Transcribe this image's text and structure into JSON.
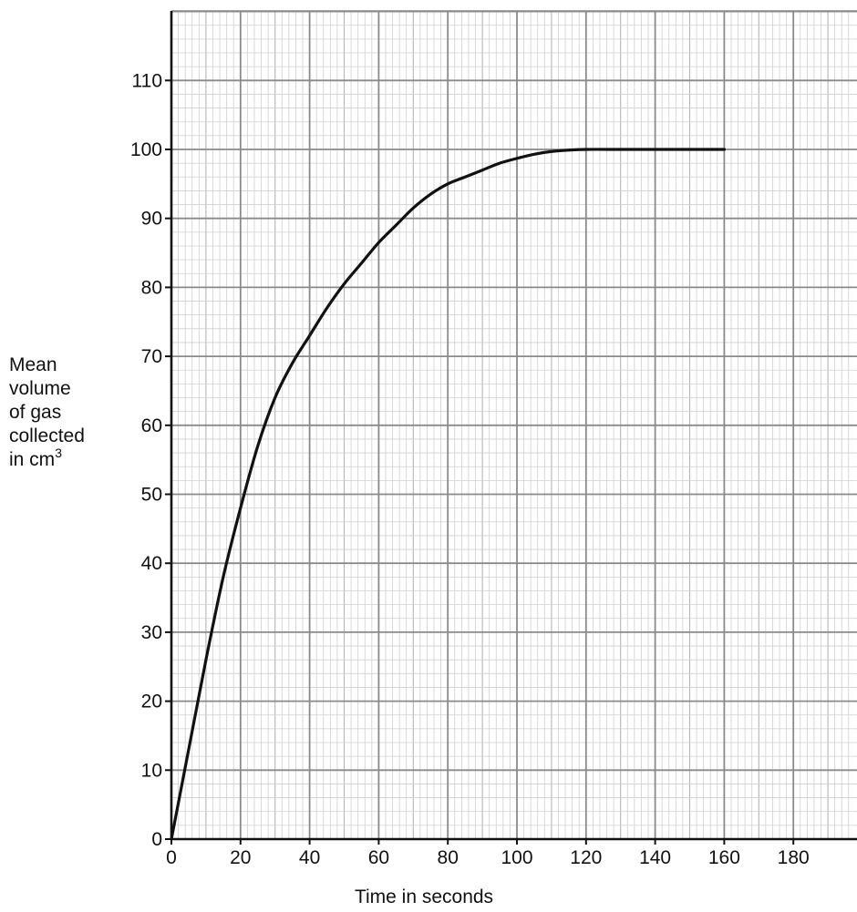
{
  "chart_data": {
    "type": "line",
    "title": "",
    "xlabel": "Time in seconds",
    "ylabel": {
      "line1": "Mean",
      "line2": "volume",
      "line3": "of gas",
      "line4": "collected",
      "line5_text": "in cm",
      "line5_sup": "3"
    },
    "xlim": [
      0,
      197
    ],
    "ylim": [
      0,
      110
    ],
    "x_ticks": [
      0,
      20,
      40,
      60,
      80,
      100,
      120,
      140,
      160,
      180
    ],
    "y_ticks": [
      0,
      10,
      20,
      30,
      40,
      50,
      60,
      70,
      80,
      90,
      100,
      110
    ],
    "grid": true,
    "minor_grid_step": {
      "x": 2,
      "y": 2
    },
    "series": [
      {
        "x": [
          0,
          5,
          10,
          15,
          20,
          25,
          30,
          35,
          40,
          45,
          50,
          55,
          60,
          65,
          70,
          75,
          80,
          85,
          90,
          95,
          100,
          105,
          110,
          115,
          120,
          130,
          140,
          150,
          160
        ],
        "y": [
          0,
          13,
          26,
          38,
          48,
          57,
          64,
          69,
          73,
          77,
          80.5,
          83.5,
          86.5,
          89,
          91.5,
          93.5,
          95,
          96,
          97,
          98,
          98.7,
          99.3,
          99.7,
          99.9,
          100,
          100,
          100,
          100,
          100
        ]
      }
    ],
    "colors": {
      "major_grid": "#8a8a8a",
      "minor_grid": "#cfcfcf",
      "axis": "#111111",
      "curve": "#111111"
    }
  }
}
